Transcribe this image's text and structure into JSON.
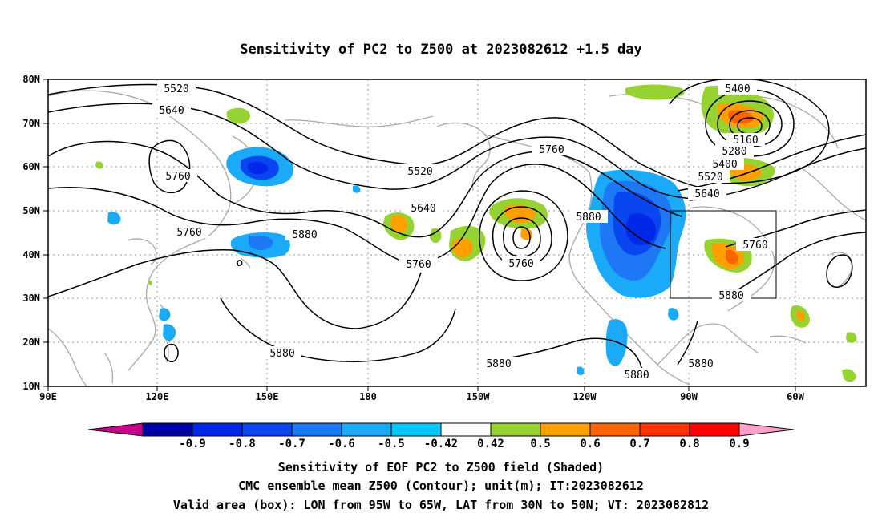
{
  "title": "Sensitivity of PC2 to Z500 at 2023082612 +1.5 day",
  "map": {
    "lon_labels": [
      "90E",
      "120E",
      "150E",
      "180",
      "150W",
      "120W",
      "90W",
      "60W"
    ],
    "lat_labels": [
      "80N",
      "70N",
      "60N",
      "50N",
      "40N",
      "30N",
      "20N",
      "10N"
    ],
    "lon_range": [
      90,
      313
    ],
    "lat_range": [
      10,
      80
    ],
    "valid_box": {
      "lon_min": 265,
      "lon_max": 295,
      "lat_min": 30,
      "lat_max": 50
    }
  },
  "contour_labels": [
    "5520",
    "5640",
    "5760",
    "5520",
    "5760",
    "5640",
    "5880",
    "5760",
    "5760",
    "5760",
    "5880",
    "5400",
    "5160",
    "5280",
    "5400",
    "5520",
    "5640",
    "5760",
    "5880",
    "5880",
    "5880",
    "5880",
    "5880"
  ],
  "colorbar": {
    "ticks": [
      "-0.9",
      "-0.8",
      "-0.7",
      "-0.6",
      "-0.5",
      "-0.42",
      "0.42",
      "0.5",
      "0.6",
      "0.7",
      "0.8",
      "0.9"
    ],
    "colors": [
      "#0000a8",
      "#0028e8",
      "#0a46f0",
      "#1e78f5",
      "#1aaaf8",
      "#00c8ff",
      "#ffffff",
      "#96d232",
      "#ffa000",
      "#ff6400",
      "#ff3200",
      "#ff0000"
    ],
    "left_end_color": "#c8008c",
    "right_end_color": "#ffa0c8"
  },
  "caption": {
    "line1": "Sensitivity of EOF PC2 to Z500 field (Shaded)",
    "line2": "CMC ensemble mean Z500 (Contour); unit(m); IT:2023082612",
    "line3": "Valid area (box): LON from 95W to 65W, LAT from 30N to 50N; VT: 2023082812"
  }
}
